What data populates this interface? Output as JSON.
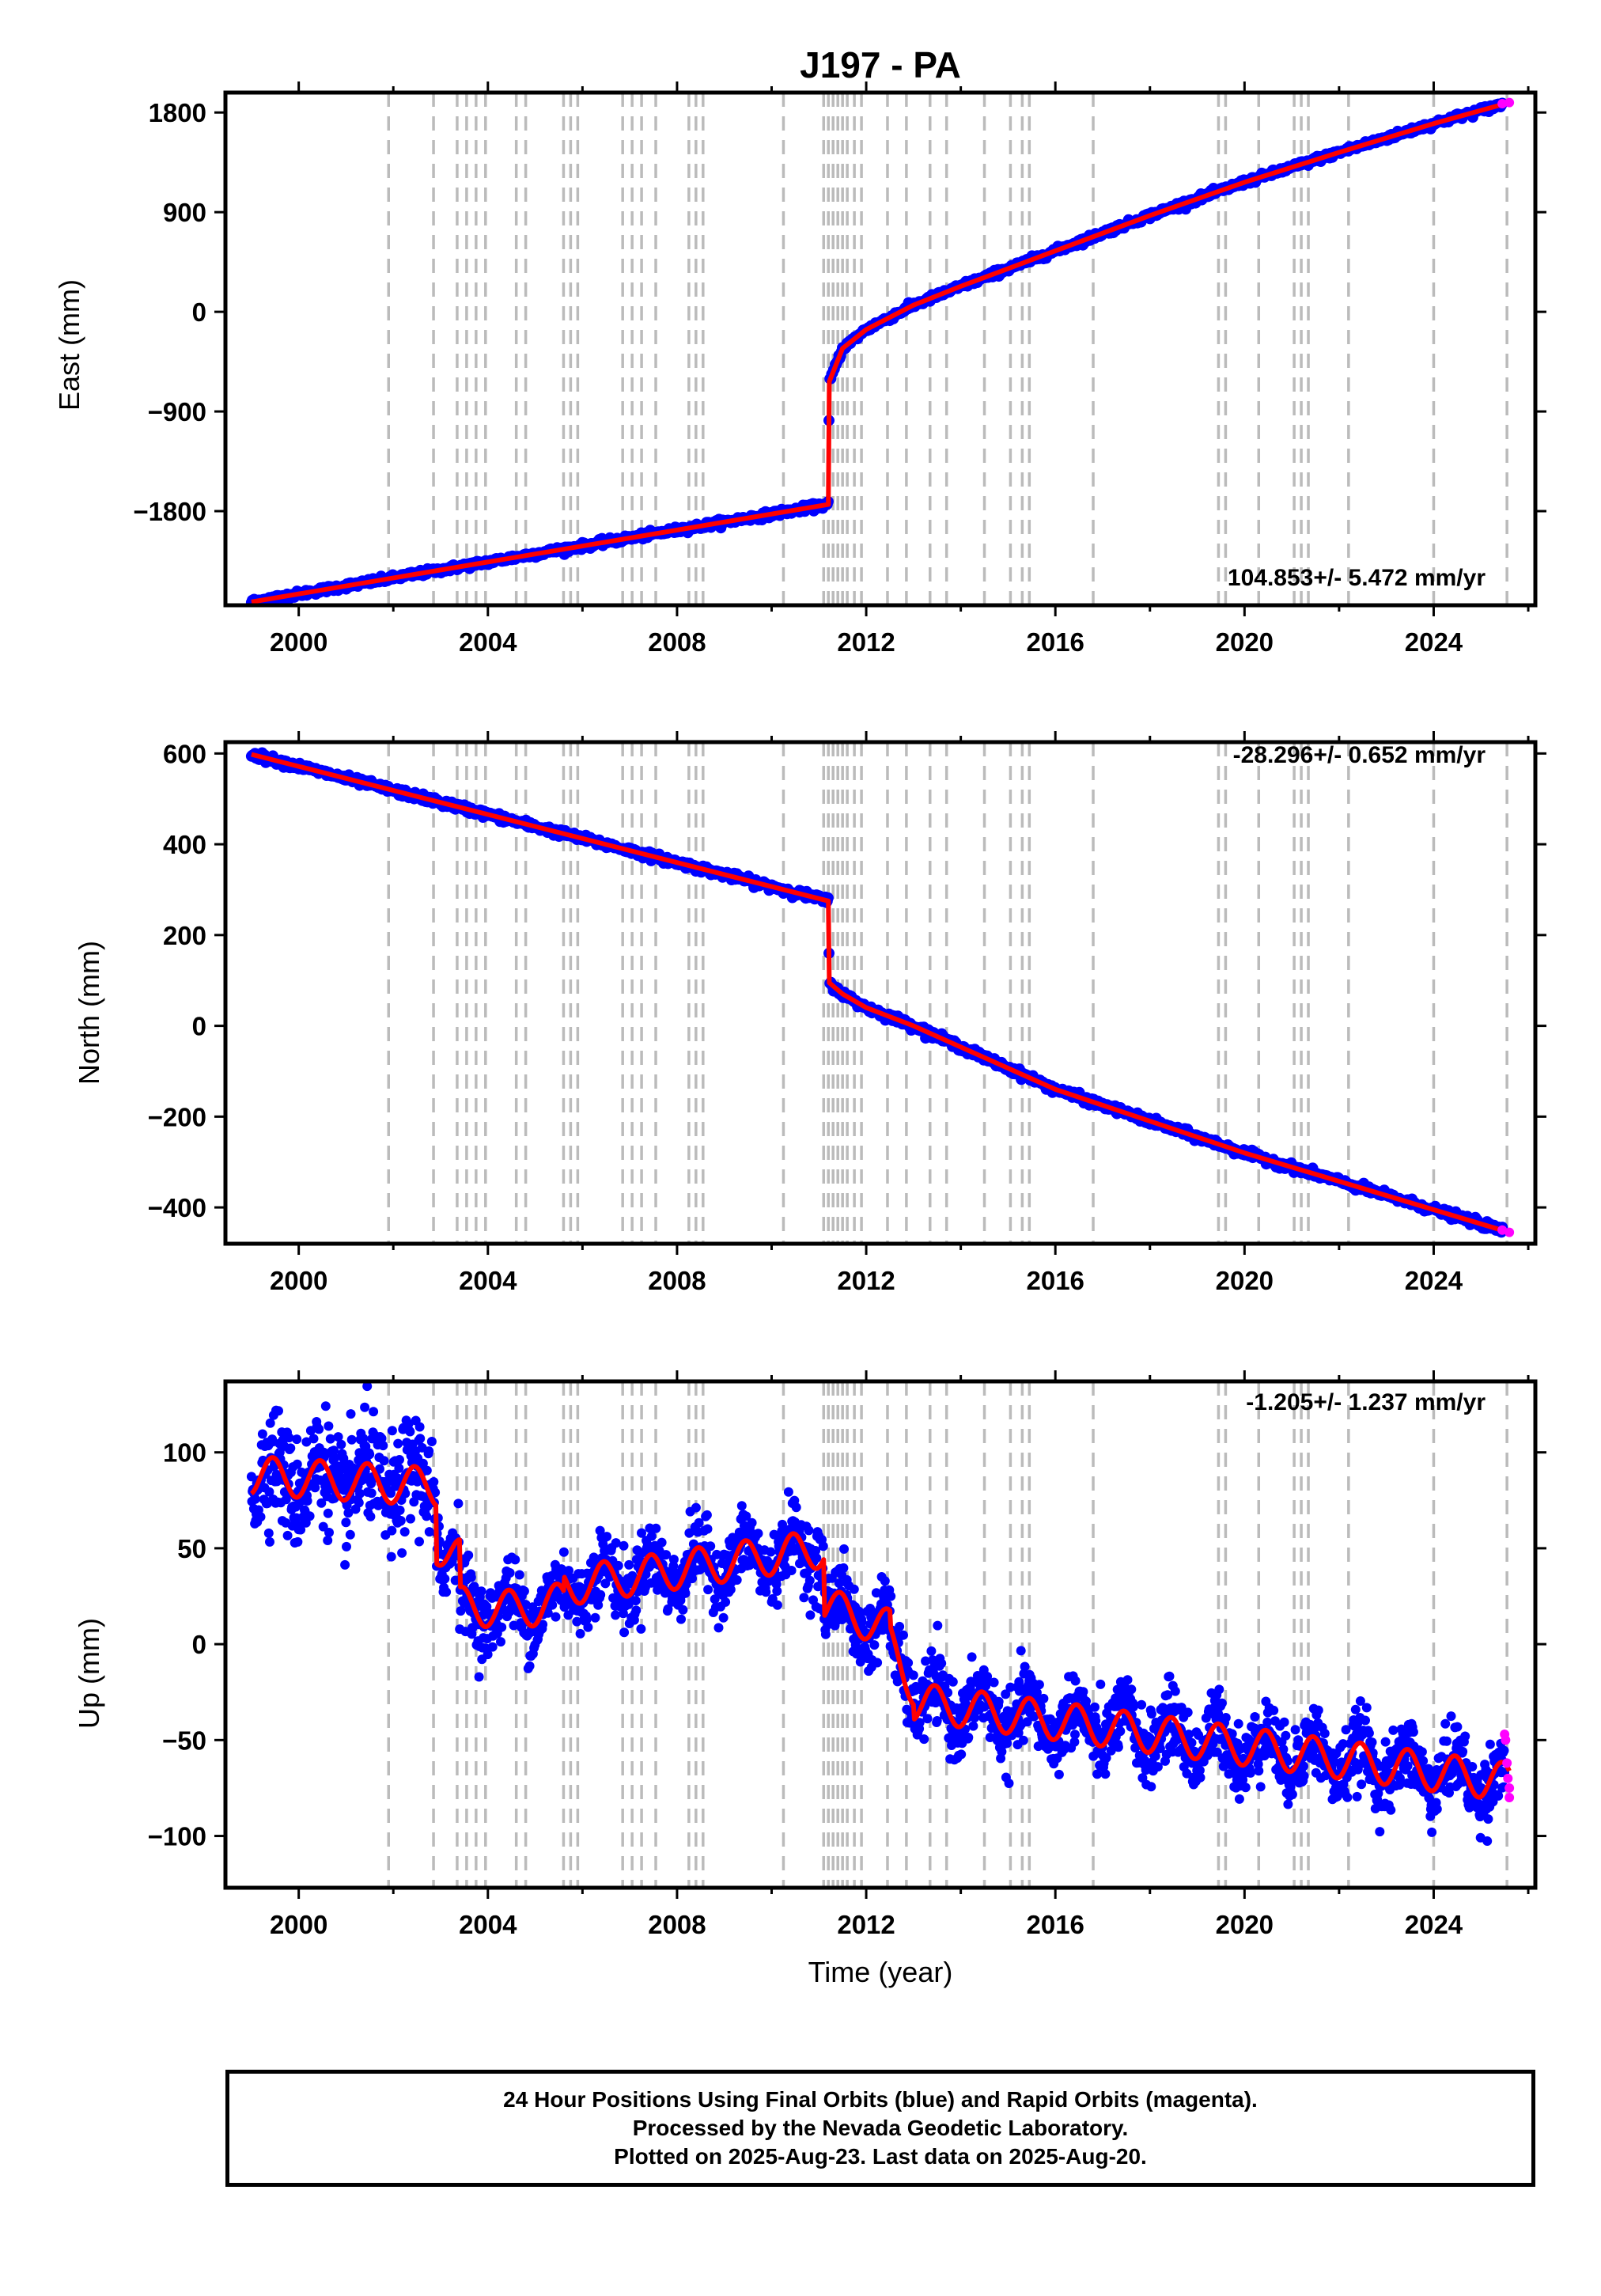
{
  "title": "J197 - PA",
  "colors": {
    "final": "#0000ff",
    "rapid": "#ff00ff",
    "model": "#ff0000",
    "steps": "#bbbbbb"
  },
  "steps": [
    2001.9,
    2002.85,
    2003.35,
    2003.55,
    2003.75,
    2003.95,
    2004.6,
    2004.8,
    2005.6,
    2005.75,
    2005.9,
    2006.85,
    2007.05,
    2007.25,
    2007.55,
    2008.25,
    2008.4,
    2008.55,
    2010.25,
    2011.1,
    2011.2,
    2011.3,
    2011.4,
    2011.5,
    2011.6,
    2011.75,
    2011.9,
    2012.45,
    2012.85,
    2013.35,
    2013.7,
    2014.5,
    2015.05,
    2015.3,
    2015.45,
    2016.8,
    2019.45,
    2019.6,
    2020.3,
    2021.05,
    2021.2,
    2021.35,
    2022.2,
    2024.0,
    2025.55
  ],
  "chart_data": [
    {
      "type": "scatter",
      "name": "east",
      "ylabel": "East (mm)",
      "xlabel": "",
      "xlim": [
        1998.45,
        2026.15
      ],
      "ylim": [
        -2650,
        1980
      ],
      "xticks": [
        2000,
        2004,
        2008,
        2012,
        2016,
        2020,
        2024
      ],
      "yticks": [
        1800,
        900,
        0,
        -900,
        -1800
      ],
      "ytick_labels": [
        "1800",
        "900",
        "0",
        "−900",
        "−1800"
      ],
      "rate_label": "104.853+/- 5.472 mm/yr",
      "rate_position": "bottom-right",
      "model": {
        "type": "line",
        "segments": [
          {
            "x": [
              1999.0,
              2011.2
            ],
            "y": [
              -2620,
              -1740
            ]
          },
          {
            "x": [
              2011.2,
              2011.22
            ],
            "y": [
              -1740,
              -630
            ]
          },
          {
            "x": [
              2011.22,
              2011.5,
              2012.0,
              2013.0,
              2014.0,
              2016.0,
              2018.0,
              2020.0,
              2022.0,
              2024.0,
              2025.6
            ],
            "y": [
              -630,
              -330,
              -160,
              60,
              230,
              550,
              870,
              1170,
              1440,
              1700,
              1890
            ]
          }
        ]
      },
      "scatter_noise_mm": 14,
      "rapid_tail": {
        "x": [
          2025.45,
          2025.6
        ],
        "y": [
          1880,
          1890
        ]
      }
    },
    {
      "type": "scatter",
      "name": "north",
      "ylabel": "North (mm)",
      "xlabel": "",
      "xlim": [
        1998.45,
        2026.15
      ],
      "ylim": [
        -480,
        625
      ],
      "xticks": [
        2000,
        2004,
        2008,
        2012,
        2016,
        2020,
        2024
      ],
      "yticks": [
        600,
        400,
        200,
        0,
        -200,
        -400
      ],
      "ytick_labels": [
        "600",
        "400",
        "200",
        "0",
        "−200",
        "−400"
      ],
      "rate_label": "-28.296+/- 0.652 mm/yr",
      "rate_position": "top-right",
      "model": {
        "type": "line",
        "segments": [
          {
            "x": [
              1999.0,
              2011.2
            ],
            "y": [
              598,
              275
            ]
          },
          {
            "x": [
              2011.2,
              2011.22
            ],
            "y": [
              275,
              95
            ]
          },
          {
            "x": [
              2011.22,
              2011.5,
              2012.0,
              2013.0,
              2016.0,
              2020.0,
              2024.0,
              2025.6
            ],
            "y": [
              95,
              70,
              40,
              0,
              -140,
              -280,
              -405,
              -455
            ]
          }
        ]
      },
      "scatter_noise_mm": 4,
      "rapid_tail": {
        "x": [
          2025.45,
          2025.6
        ],
        "y": [
          -450,
          -455
        ]
      }
    },
    {
      "type": "scatter",
      "name": "up",
      "ylabel": "Up (mm)",
      "xlabel": "Time (year)",
      "xlim": [
        1998.45,
        2026.15
      ],
      "ylim": [
        -127,
        137
      ],
      "xticks": [
        2000,
        2004,
        2008,
        2012,
        2016,
        2020,
        2024
      ],
      "yticks": [
        100,
        50,
        0,
        -50,
        -100
      ],
      "ytick_labels": [
        "100",
        "50",
        "0",
        "−50",
        "−100"
      ],
      "rate_label": "-1.205+/- 1.237 mm/yr",
      "rate_position": "top-right",
      "model": {
        "type": "line",
        "seasonal_amplitude_mm": 10,
        "trend_segments": [
          {
            "x": [
              1999.0,
              2002.9
            ],
            "y": [
              88,
              82
            ]
          },
          {
            "x": [
              2002.9,
              2003.4
            ],
            "y": [
              52,
              45
            ]
          },
          {
            "x": [
              2003.4,
              2004.6
            ],
            "y": [
              20,
              18
            ]
          },
          {
            "x": [
              2004.6,
              2005.6
            ],
            "y": [
              18,
              22
            ]
          },
          {
            "x": [
              2005.6,
              2011.1
            ],
            "y": [
              30,
              50
            ]
          },
          {
            "x": [
              2011.1,
              2012.5
            ],
            "y": [
              20,
              8
            ]
          },
          {
            "x": [
              2012.5,
              2013.0
            ],
            "y": [
              0,
              -22
            ]
          },
          {
            "x": [
              2013.0,
              2025.6
            ],
            "y": [
              -30,
              -72
            ]
          }
        ]
      },
      "scatter_noise_mm": 9,
      "rapid_tail": {
        "x": [
          2025.5,
          2025.52,
          2025.55,
          2025.57,
          2025.6,
          2025.6
        ],
        "y": [
          -47,
          -50,
          -62,
          -70,
          -75,
          -80
        ]
      }
    }
  ],
  "footer": {
    "line1": "24 Hour Positions Using Final Orbits (blue) and Rapid Orbits (magenta).",
    "line2": "Processed by the Nevada Geodetic Laboratory.",
    "line3": "Plotted on 2025-Aug-23. Last data on 2025-Aug-20."
  }
}
